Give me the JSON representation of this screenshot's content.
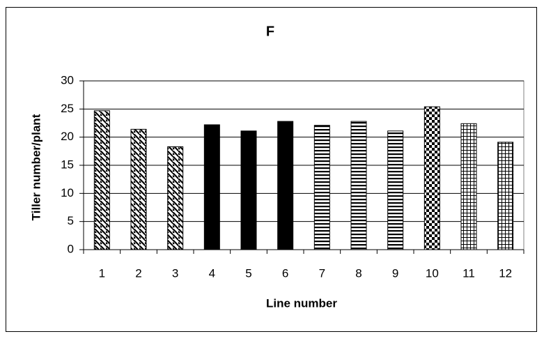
{
  "chart_data": {
    "type": "bar",
    "title": "F",
    "x_label": "Line number",
    "y_label": "Tiller number/plant",
    "categories": [
      "1",
      "2",
      "3",
      "4",
      "5",
      "6",
      "7",
      "8",
      "9",
      "10",
      "11",
      "12"
    ],
    "values": [
      24.7,
      21.4,
      18.3,
      22.2,
      21.1,
      22.8,
      22.1,
      22.8,
      21.1,
      25.4,
      22.4,
      19.1
    ],
    "patterns": [
      "diagonal",
      "diagonal",
      "diagonal",
      "solid",
      "solid",
      "solid",
      "horizontal",
      "horizontal",
      "horizontal",
      "checker",
      "grid",
      "grid"
    ],
    "color": "#000000",
    "ylim": [
      0,
      30
    ],
    "yticks": [
      0,
      5,
      10,
      15,
      20,
      25,
      30
    ],
    "grid": true
  }
}
